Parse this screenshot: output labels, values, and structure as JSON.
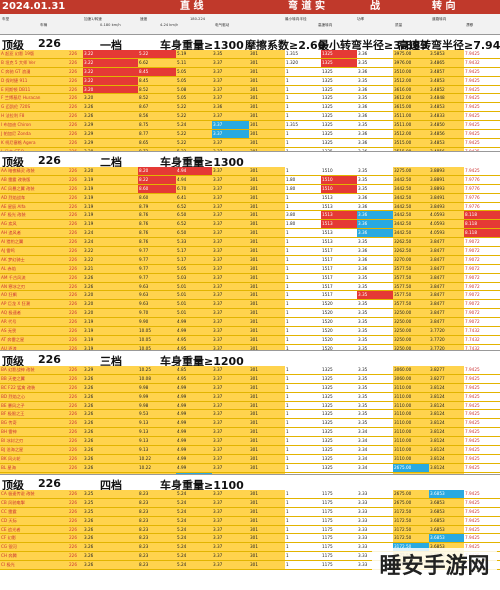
{
  "title_bar": {
    "date": "2024.01.31",
    "col2": "直  线",
    "col3": "弯  道  实",
    "col4": "战",
    "col5": "转  向"
  },
  "subheader": {
    "cols": [
      "车型",
      "车辆",
      "加速1/转速",
      "0-180 km/h",
      "速度",
      "4-24 km/h",
      "180-224",
      "电气驱动",
      "最小转向半径",
      "高速转向",
      "功率",
      "质量",
      "道路转向",
      "漂移"
    ]
  },
  "bands": [
    {
      "level": "顶级",
      "count": "226",
      "gear": "一档",
      "mass": "车身重量≥1300",
      "friction": "摩擦系数≥2.60",
      "min_radius": "最小转弯半径≥3.883",
      "high_radius": "高速转弯半径≥7.9425"
    },
    {
      "level": "顶级",
      "count": "226",
      "gear": "二档",
      "mass": "车身重量≥1300",
      "friction": "",
      "min_radius": "",
      "high_radius": ""
    },
    {
      "level": "顶级",
      "count": "226",
      "gear": "三档",
      "mass": "车身重量≥1200",
      "friction": "",
      "min_radius": "",
      "high_radius": ""
    },
    {
      "level": "顶级",
      "count": "226",
      "gear": "四档",
      "mass": "车身重量≥1100",
      "friction": "",
      "min_radius": "",
      "high_radius": ""
    }
  ],
  "sections": [
    {
      "rows": [
        [
          "A 起亚 幻影 19版",
          "226",
          "3.22",
          "5.22",
          "5.19",
          "3.35",
          "301",
          "1.315",
          "1325",
          "3.36",
          "3975.00",
          "3.5853",
          "7.9425"
        ],
        [
          "B 坦克 5 大师 Ver",
          "226",
          "3.22",
          "6.62",
          "5.11",
          "3.37",
          "301",
          "1.320",
          "1325",
          "3.35",
          "3976.00",
          "3.4865",
          "7.9432"
        ],
        [
          "C 奔驰 GT 浪漫",
          "226",
          "3.22",
          "8.45",
          "5.05",
          "3.37",
          "301",
          "1",
          "1325",
          "3.36",
          "3510.00",
          "3.4857",
          "7.9425"
        ],
        [
          "D 保时捷 911",
          "226",
          "3.22",
          "8.45",
          "5.05",
          "3.37",
          "301",
          "1",
          "1325",
          "3.35",
          "3512.00",
          "3.4853",
          "7.9425"
        ],
        [
          "E 阿斯顿 DB11",
          "226",
          "3.20",
          "8.52",
          "5.08",
          "3.37",
          "301",
          "1",
          "1325",
          "3.36",
          "3616.00",
          "3.4852",
          "7.9425"
        ],
        [
          "F 兰博基尼 Huracan",
          "226",
          "3.20",
          "8.52",
          "5.05",
          "3.37",
          "301",
          "1",
          "1325",
          "3.35",
          "3612.00",
          "3.4848",
          "7.9425"
        ],
        [
          "G 迈凯伦 720S",
          "226",
          "3.26",
          "8.67",
          "5.22",
          "3.36",
          "301",
          "1",
          "1325",
          "3.36",
          "3615.00",
          "3.4853",
          "7.9425"
        ],
        [
          "H 法拉利 F8",
          "226",
          "3.26",
          "8.56",
          "5.22",
          "3.37",
          "301",
          "1",
          "1325",
          "3.36",
          "3511.00",
          "3.4833",
          "7.9425"
        ],
        [
          "I 布加迪 Chiron",
          "226",
          "3.29",
          "8.75",
          "5.24",
          "3.37",
          "301",
          "1.315",
          "1325",
          "3.35",
          "3511.00",
          "3.4850",
          "7.9425"
        ],
        [
          "J 帕加尼 Zonda",
          "226",
          "3.29",
          "8.77",
          "5.22",
          "3.37",
          "301",
          "1",
          "1325",
          "3.36",
          "3512.00",
          "3.4856",
          "7.9425"
        ],
        [
          "K 柯尼塞格 Agera",
          "226",
          "3.29",
          "8.65",
          "5.22",
          "3.37",
          "301",
          "1",
          "1325",
          "3.36",
          "3515.00",
          "3.4853",
          "7.9425"
        ],
        [
          "L 日产 GT-R",
          "226",
          "3.28",
          "8.72",
          "5.22",
          "3.37",
          "301",
          "1",
          "1325",
          "3.36",
          "3515.00",
          "3.4856",
          "7.9425"
        ],
        [
          "M 福特 GT",
          "226",
          "3.28",
          "8.72",
          "5.20",
          "3.37",
          "301",
          "1",
          "1325",
          "3.36",
          "3514.00",
          "3.4858",
          "7.9425"
        ],
        [
          "N 雪佛兰 Corvette",
          "226",
          "3.20",
          "8.49",
          "5.19",
          "3.37",
          "301",
          "1",
          "1325",
          "3.36",
          "3512.00",
          "3.4853",
          "7.9425"
        ],
        [
          "O 道奇 Viper",
          "226",
          "3.20",
          "8.59",
          "5.05",
          "3.37",
          "301",
          "1",
          "1325",
          "3.36",
          "3516.00",
          "3.4851",
          "7.9425"
        ],
        [
          "P 宝马 M8",
          "226",
          "3.20",
          "8.55",
          "5.08",
          "3.37",
          "301",
          "1",
          "1325",
          "3.36",
          "3516.00",
          "3.4855",
          "7.9425"
        ]
      ]
    },
    {
      "rows": [
        [
          "AA 暗夜精灵 改装",
          "226",
          "3.20",
          "8.20",
          "4.94",
          "3.37",
          "301",
          "1",
          "1510",
          "3.35",
          "3275.00",
          "3.8893",
          "7.9425"
        ],
        [
          "AB 雷霆 改装版",
          "226",
          "3.19",
          "8.22",
          "4.94",
          "3.37",
          "301",
          "1.80",
          "1510",
          "3.35",
          "3442.50",
          "3.8891",
          "7.9776"
        ],
        [
          "AC 风暴之翼 改装",
          "226",
          "3.19",
          "8.60",
          "6.70",
          "3.37",
          "301",
          "1.80",
          "1510",
          "3.35",
          "3442.50",
          "3.8893",
          "7.9776"
        ],
        [
          "AD 烈焰战车",
          "226",
          "3.19",
          "8.60",
          "6.41",
          "3.37",
          "301",
          "1",
          "1513",
          "3.36",
          "3442.50",
          "3.8491",
          "7.9776"
        ],
        [
          "AE 星辰 Alfa",
          "226",
          "3.19",
          "8.79",
          "6.52",
          "3.37",
          "301",
          "1",
          "1513",
          "3.36",
          "3442.50",
          "3.8493",
          "7.9776"
        ],
        [
          "AF 极光 改装",
          "226",
          "3.19",
          "8.76",
          "6.50",
          "3.37",
          "301",
          "3.80",
          "1513",
          "3.36",
          "3442.50",
          "4.0593",
          "8.118"
        ],
        [
          "AG 疾风",
          "226",
          "3.19",
          "8.76",
          "6.52",
          "3.37",
          "301",
          "1.80",
          "1513",
          "3.36",
          "3442.50",
          "4.0593",
          "8.118"
        ],
        [
          "AH 追风者",
          "226",
          "3.24",
          "8.76",
          "6.50",
          "3.37",
          "301",
          "1",
          "1513",
          "3.36",
          "3442.50",
          "4.0593",
          "8.118"
        ],
        [
          "AI 猎豹之翼",
          "226",
          "3.24",
          "8.76",
          "5.33",
          "3.37",
          "301",
          "1",
          "1513",
          "3.35",
          "3262.50",
          "3.8477",
          "7.9072"
        ],
        [
          "AJ 雷鸣",
          "226",
          "3.22",
          "9.77",
          "5.17",
          "3.37",
          "301",
          "1",
          "1517",
          "3.36",
          "3262.50",
          "3.8477",
          "7.9072"
        ],
        [
          "AK 梦幻骑士",
          "226",
          "3.22",
          "9.77",
          "5.17",
          "3.37",
          "301",
          "1",
          "1517",
          "3.36",
          "3270.00",
          "3.8477",
          "7.9072"
        ],
        [
          "AL 赤焰",
          "226",
          "3.21",
          "9.77",
          "5.05",
          "3.37",
          "301",
          "1",
          "1517",
          "3.36",
          "3577.50",
          "3.8477",
          "7.9072"
        ],
        [
          "AM 千古风流",
          "226",
          "3.26",
          "9.77",
          "5.03",
          "3.37",
          "301",
          "1",
          "1517",
          "3.35",
          "3577.50",
          "3.8477",
          "7.9072"
        ],
        [
          "AN 寒冰之刃",
          "226",
          "3.26",
          "9.63",
          "5.01",
          "3.37",
          "301",
          "1",
          "1517",
          "3.35",
          "3577.50",
          "3.8477",
          "7.9072"
        ],
        [
          "AO 狂飙",
          "226",
          "3.20",
          "9.63",
          "5.01",
          "3.37",
          "301",
          "1",
          "1517",
          "3.35",
          "3577.50",
          "3.8477",
          "7.9072"
        ],
        [
          "AP 巨龙 X 狂潮",
          "226",
          "3.20",
          "9.63",
          "5.01",
          "3.37",
          "301",
          "1",
          "1520",
          "3.35",
          "3577.50",
          "3.8477",
          "7.9072"
        ],
        [
          "AQ 极速者",
          "226",
          "3.20",
          "9.70",
          "5.01",
          "3.37",
          "301",
          "1",
          "1520",
          "3.35",
          "3250.00",
          "3.8477",
          "7.9072"
        ],
        [
          "AR 代号",
          "226",
          "3.19",
          "9.90",
          "4.99",
          "3.37",
          "301",
          "1",
          "1520",
          "3.35",
          "3250.00",
          "3.8477",
          "7.9072"
        ],
        [
          "AS 无畏",
          "226",
          "3.19",
          "10.05",
          "4.99",
          "3.37",
          "301",
          "1",
          "1520",
          "3.35",
          "3250.00",
          "3.7720",
          "7.7432"
        ],
        [
          "AT 奔雷之星",
          "226",
          "3.19",
          "10.05",
          "4.95",
          "3.37",
          "301",
          "1",
          "1520",
          "3.35",
          "3250.00",
          "3.7720",
          "7.7432"
        ],
        [
          "AU 逐浪",
          "226",
          "3.19",
          "10.05",
          "4.95",
          "3.37",
          "301",
          "1",
          "1520",
          "3.35",
          "3250.00",
          "3.7720",
          "7.7432"
        ],
        [
          "AV 星光",
          "226",
          "3.19",
          "10.05",
          "4.95",
          "3.37",
          "301",
          "1",
          "1520",
          "3.35",
          "3250.00",
          "3.7720",
          "7.7432"
        ],
        [
          "AW 惊雷",
          "226",
          "3.19",
          "10.05",
          "4.95",
          "3.37",
          "301",
          "1",
          "1520",
          "3.35",
          "3250.00",
          "3.7720",
          "7.7432"
        ],
        [
          "AX 夜行者",
          "226",
          "3.19",
          "10.05",
          "4.95",
          "3.37",
          "301",
          "1",
          "1520",
          "3.35",
          "3250.00",
          "3.7720",
          "7.7432"
        ]
      ]
    },
    {
      "rows": [
        [
          "BA 幻影战神 改装",
          "226",
          "3.29",
          "10.25",
          "4.85",
          "3.37",
          "301",
          "1",
          "1325",
          "3.35",
          "3060.00",
          "3.8277",
          "7.9425"
        ],
        [
          "BB 天使之翼",
          "226",
          "3.26",
          "10.08",
          "4.95",
          "3.37",
          "301",
          "1",
          "1325",
          "3.35",
          "3060.00",
          "3.8277",
          "7.9425"
        ],
        [
          "BC F22 猛禽 改装",
          "226",
          "3.26",
          "9.98",
          "4.99",
          "3.37",
          "301",
          "1",
          "1325",
          "3.35",
          "3110.00",
          "3.8124",
          "7.9425"
        ],
        [
          "BD 烈焰之心",
          "226",
          "3.26",
          "9.99",
          "4.99",
          "3.37",
          "301",
          "1",
          "1325",
          "3.35",
          "3110.00",
          "3.8124",
          "7.9425"
        ],
        [
          "BE 暴风之子",
          "226",
          "3.26",
          "9.98",
          "4.99",
          "3.37",
          "301",
          "1",
          "1325",
          "3.35",
          "3110.00",
          "3.8124",
          "7.9425"
        ],
        [
          "BF 极限之王",
          "226",
          "3.26",
          "9.53",
          "4.99",
          "3.37",
          "301",
          "1",
          "1325",
          "3.35",
          "3110.00",
          "3.8124",
          "7.9425"
        ],
        [
          "BG 传奇",
          "226",
          "3.26",
          "9.13",
          "4.99",
          "3.37",
          "301",
          "1",
          "1325",
          "3.35",
          "3110.00",
          "3.8124",
          "7.9425"
        ],
        [
          "BH 雷神",
          "226",
          "3.26",
          "9.13",
          "4.99",
          "3.37",
          "301",
          "1",
          "1325",
          "3.34",
          "3110.00",
          "3.8124",
          "7.9425"
        ],
        [
          "BI 冰封之刃",
          "226",
          "3.26",
          "9.13",
          "4.99",
          "3.37",
          "301",
          "1",
          "1325",
          "3.34",
          "3110.00",
          "3.8124",
          "7.9425"
        ],
        [
          "BJ 沧海之星",
          "226",
          "3.26",
          "9.13",
          "4.99",
          "3.37",
          "301",
          "1",
          "1325",
          "3.34",
          "3110.00",
          "3.8124",
          "7.9425"
        ],
        [
          "BK 风火轮",
          "226",
          "3.26",
          "10.22",
          "4.99",
          "3.37",
          "301",
          "1",
          "1325",
          "3.34",
          "3110.00",
          "3.8124",
          "7.9425"
        ],
        [
          "BL 星海",
          "226",
          "3.26",
          "10.22",
          "4.99",
          "3.37",
          "301",
          "1",
          "1325",
          "3.34",
          "2675.00",
          "3.8124",
          "7.9425"
        ],
        [
          "BM 流光",
          "226",
          "3.26",
          "10.22",
          "4.98",
          "3.37",
          "301",
          "1",
          "1325",
          "3.34",
          "2675.00",
          "3.8124",
          "7.9425"
        ],
        [
          "BN 冰山之王",
          "226",
          "3.26",
          "10.22",
          "4.98",
          "3.37",
          "301",
          "1",
          "1325",
          "3.34",
          "2675.00",
          "3.8124",
          "7.9425"
        ],
        [
          "BO 赤焰骑士",
          "226",
          "3.26",
          "10.22",
          "4.98",
          "3.37",
          "301",
          "1",
          "1325",
          "3.34",
          "2675.00",
          "3.8124",
          "7.9425"
        ],
        [
          "BP 飞鹰",
          "226",
          "3.26",
          "10.22",
          "4.98",
          "3.37",
          "301",
          "1",
          "1325",
          "3.34",
          "2675.00",
          "3.8124",
          "7.9425"
        ]
      ]
    },
    {
      "rows": [
        [
          "CA 极速传说 改装",
          "226",
          "3.25",
          "8.23",
          "5.24",
          "3.37",
          "301",
          "1",
          "1175",
          "3.33",
          "2675.00",
          "3.6853",
          "7.9425"
        ],
        [
          "CB 风驰电掣",
          "226",
          "3.25",
          "8.23",
          "5.24",
          "3.37",
          "301",
          "1",
          "1175",
          "3.33",
          "2675.00",
          "3.6853",
          "7.9425"
        ],
        [
          "CC 雷霆",
          "226",
          "3.25",
          "8.23",
          "5.24",
          "3.37",
          "301",
          "1",
          "1175",
          "3.33",
          "3172.50",
          "3.6853",
          "7.9425"
        ],
        [
          "CD 天际",
          "226",
          "3.26",
          "8.23",
          "5.24",
          "3.37",
          "301",
          "1",
          "1175",
          "3.33",
          "3172.50",
          "3.6853",
          "7.9425"
        ],
        [
          "CE 追光者",
          "226",
          "3.26",
          "8.23",
          "5.24",
          "3.37",
          "301",
          "1",
          "1175",
          "3.33",
          "3172.50",
          "3.6853",
          "7.9425"
        ],
        [
          "CF 幻影",
          "226",
          "3.26",
          "8.23",
          "5.24",
          "3.37",
          "301",
          "1",
          "1175",
          "3.33",
          "3172.50",
          "3.6853",
          "7.9425"
        ],
        [
          "CG 银河",
          "226",
          "3.26",
          "8.23",
          "5.24",
          "3.37",
          "301",
          "1",
          "1175",
          "3.33",
          "3172.50",
          "3.6853",
          "7.9425"
        ],
        [
          "CH 奔腾",
          "226",
          "3.26",
          "8.23",
          "5.24",
          "3.37",
          "301",
          "1",
          "1175",
          "3.33",
          "3172.50",
          "3.6853",
          "7.9425"
        ],
        [
          "CI 极光",
          "226",
          "3.26",
          "8.23",
          "5.24",
          "3.37",
          "301",
          "1",
          "1175",
          "3.33",
          "3172.50",
          "3.6853",
          "7.9425"
        ]
      ]
    }
  ],
  "watermark": "睡安手游网"
}
